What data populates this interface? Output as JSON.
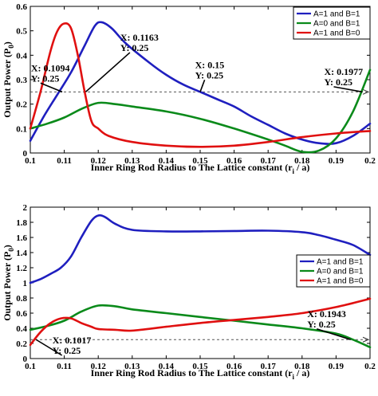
{
  "chart_data": [
    {
      "type": "line",
      "xlabel": "Inner Ring Rod Radius to The Lattice constant (r",
      "xlabel_sub": "i",
      "xlabel_end": " / a)",
      "ylabel": "Output Power (P",
      "ylabel_sub": "0",
      "ylabel_end": ")",
      "xlim": [
        0.1,
        0.2
      ],
      "ylim": [
        0,
        0.6
      ],
      "xticks": [
        "0.1",
        "0.11",
        "0.12",
        "0.13",
        "0.14",
        "0.15",
        "0.16",
        "0.17",
        "0.18",
        "0.19",
        "0.2"
      ],
      "yticks": [
        "0",
        "0.1",
        "0.2",
        "0.3",
        "0.4",
        "0.5",
        "0.6"
      ],
      "grid": false,
      "legend_position": "top-right",
      "reference_line": 0.25,
      "series": [
        {
          "name": "A=1 and B=1",
          "color": "#1f1fbf",
          "x": [
            0.1,
            0.104,
            0.108,
            0.112,
            0.116,
            0.119,
            0.121,
            0.124,
            0.128,
            0.135,
            0.14,
            0.145,
            0.15,
            0.155,
            0.16,
            0.165,
            0.17,
            0.175,
            0.18,
            0.185,
            0.19,
            0.195,
            0.2
          ],
          "y": [
            0.05,
            0.15,
            0.24,
            0.33,
            0.44,
            0.52,
            0.535,
            0.51,
            0.45,
            0.37,
            0.32,
            0.28,
            0.25,
            0.22,
            0.19,
            0.15,
            0.115,
            0.08,
            0.055,
            0.04,
            0.04,
            0.07,
            0.12
          ]
        },
        {
          "name": "A=0 and B=1",
          "color": "#0a8a1a",
          "x": [
            0.1,
            0.105,
            0.11,
            0.115,
            0.12,
            0.125,
            0.13,
            0.14,
            0.15,
            0.16,
            0.17,
            0.175,
            0.18,
            0.185,
            0.19,
            0.195,
            0.2
          ],
          "y": [
            0.1,
            0.12,
            0.145,
            0.18,
            0.205,
            0.2,
            0.19,
            0.17,
            0.14,
            0.1,
            0.055,
            0.03,
            0.005,
            0.01,
            0.06,
            0.17,
            0.34
          ]
        },
        {
          "name": "A=1 and B=0",
          "color": "#e01010",
          "x": [
            0.1,
            0.103,
            0.106,
            0.108,
            0.11,
            0.112,
            0.114,
            0.116,
            0.118,
            0.12,
            0.123,
            0.13,
            0.14,
            0.15,
            0.16,
            0.17,
            0.18,
            0.19,
            0.2
          ],
          "y": [
            0.1,
            0.25,
            0.42,
            0.5,
            0.53,
            0.51,
            0.4,
            0.25,
            0.13,
            0.1,
            0.07,
            0.045,
            0.03,
            0.025,
            0.03,
            0.045,
            0.065,
            0.08,
            0.09
          ]
        }
      ],
      "annotations": [
        {
          "lines": [
            "X: 0.1094",
            "Y: 0.25"
          ],
          "point": [
            0.1094,
            0.25
          ],
          "label_at": [
            0.1002,
            0.335
          ]
        },
        {
          "lines": [
            "X: 0.1163",
            "Y: 0.25"
          ],
          "point": [
            0.1163,
            0.25
          ],
          "label_at": [
            0.1265,
            0.46
          ]
        },
        {
          "lines": [
            "X: 0.15",
            "Y: 0.25"
          ],
          "point": [
            0.15,
            0.25
          ],
          "label_at": [
            0.1485,
            0.348
          ]
        },
        {
          "lines": [
            "X: 0.1977",
            "Y: 0.25"
          ],
          "point": [
            0.1977,
            0.25
          ],
          "label_at": [
            0.1865,
            0.32
          ]
        }
      ]
    },
    {
      "type": "line",
      "xlabel": "Inner Ring Rod Radius to The Lattice constant (r",
      "xlabel_sub": "i",
      "xlabel_end": " / a)",
      "ylabel": "Output Power (P",
      "ylabel_sub": "0",
      "ylabel_end": ")",
      "xlim": [
        0.1,
        0.2
      ],
      "ylim": [
        0,
        2
      ],
      "xticks": [
        "0.1",
        "0.11",
        "0.12",
        "0.13",
        "0.14",
        "0.15",
        "0.16",
        "0.17",
        "0.18",
        "0.19",
        "0.2"
      ],
      "yticks": [
        "0",
        "0.2",
        "0.4",
        "0.6",
        "0.8",
        "1",
        "1.2",
        "1.4",
        "1.6",
        "1.8",
        "2"
      ],
      "grid": false,
      "legend_position": "center-right",
      "reference_line": 0.25,
      "series": [
        {
          "name": "A=1 and B=1",
          "color": "#1f1fbf",
          "x": [
            0.1,
            0.103,
            0.106,
            0.109,
            0.112,
            0.115,
            0.118,
            0.12,
            0.122,
            0.125,
            0.13,
            0.14,
            0.15,
            0.16,
            0.17,
            0.18,
            0.185,
            0.19,
            0.195,
            0.2
          ],
          "y": [
            1.0,
            1.05,
            1.12,
            1.2,
            1.35,
            1.6,
            1.82,
            1.89,
            1.87,
            1.78,
            1.7,
            1.68,
            1.68,
            1.685,
            1.69,
            1.67,
            1.63,
            1.57,
            1.5,
            1.37
          ]
        },
        {
          "name": "A=0 and B=1",
          "color": "#0a8a1a",
          "x": [
            0.1,
            0.105,
            0.11,
            0.115,
            0.12,
            0.125,
            0.13,
            0.14,
            0.15,
            0.16,
            0.17,
            0.18,
            0.19,
            0.195,
            0.2
          ],
          "y": [
            0.38,
            0.43,
            0.5,
            0.62,
            0.7,
            0.69,
            0.65,
            0.6,
            0.55,
            0.5,
            0.45,
            0.4,
            0.33,
            0.25,
            0.15
          ]
        },
        {
          "name": "A=1 and B=0",
          "color": "#e01010",
          "x": [
            0.1,
            0.103,
            0.106,
            0.109,
            0.112,
            0.115,
            0.118,
            0.12,
            0.125,
            0.13,
            0.14,
            0.15,
            0.16,
            0.17,
            0.18,
            0.19,
            0.2
          ],
          "y": [
            0.18,
            0.35,
            0.47,
            0.53,
            0.53,
            0.47,
            0.42,
            0.39,
            0.38,
            0.37,
            0.42,
            0.47,
            0.51,
            0.55,
            0.6,
            0.68,
            0.79
          ]
        }
      ],
      "annotations": [
        {
          "lines": [
            "X: 0.1017",
            "Y: 0.25"
          ],
          "point": [
            0.1017,
            0.25
          ],
          "label_at": [
            0.1065,
            0.2
          ]
        },
        {
          "lines": [
            "X: 0.1943",
            "Y: 0.25"
          ],
          "point": [
            0.1943,
            0.25
          ],
          "label_at": [
            0.1815,
            0.55
          ]
        }
      ]
    }
  ]
}
